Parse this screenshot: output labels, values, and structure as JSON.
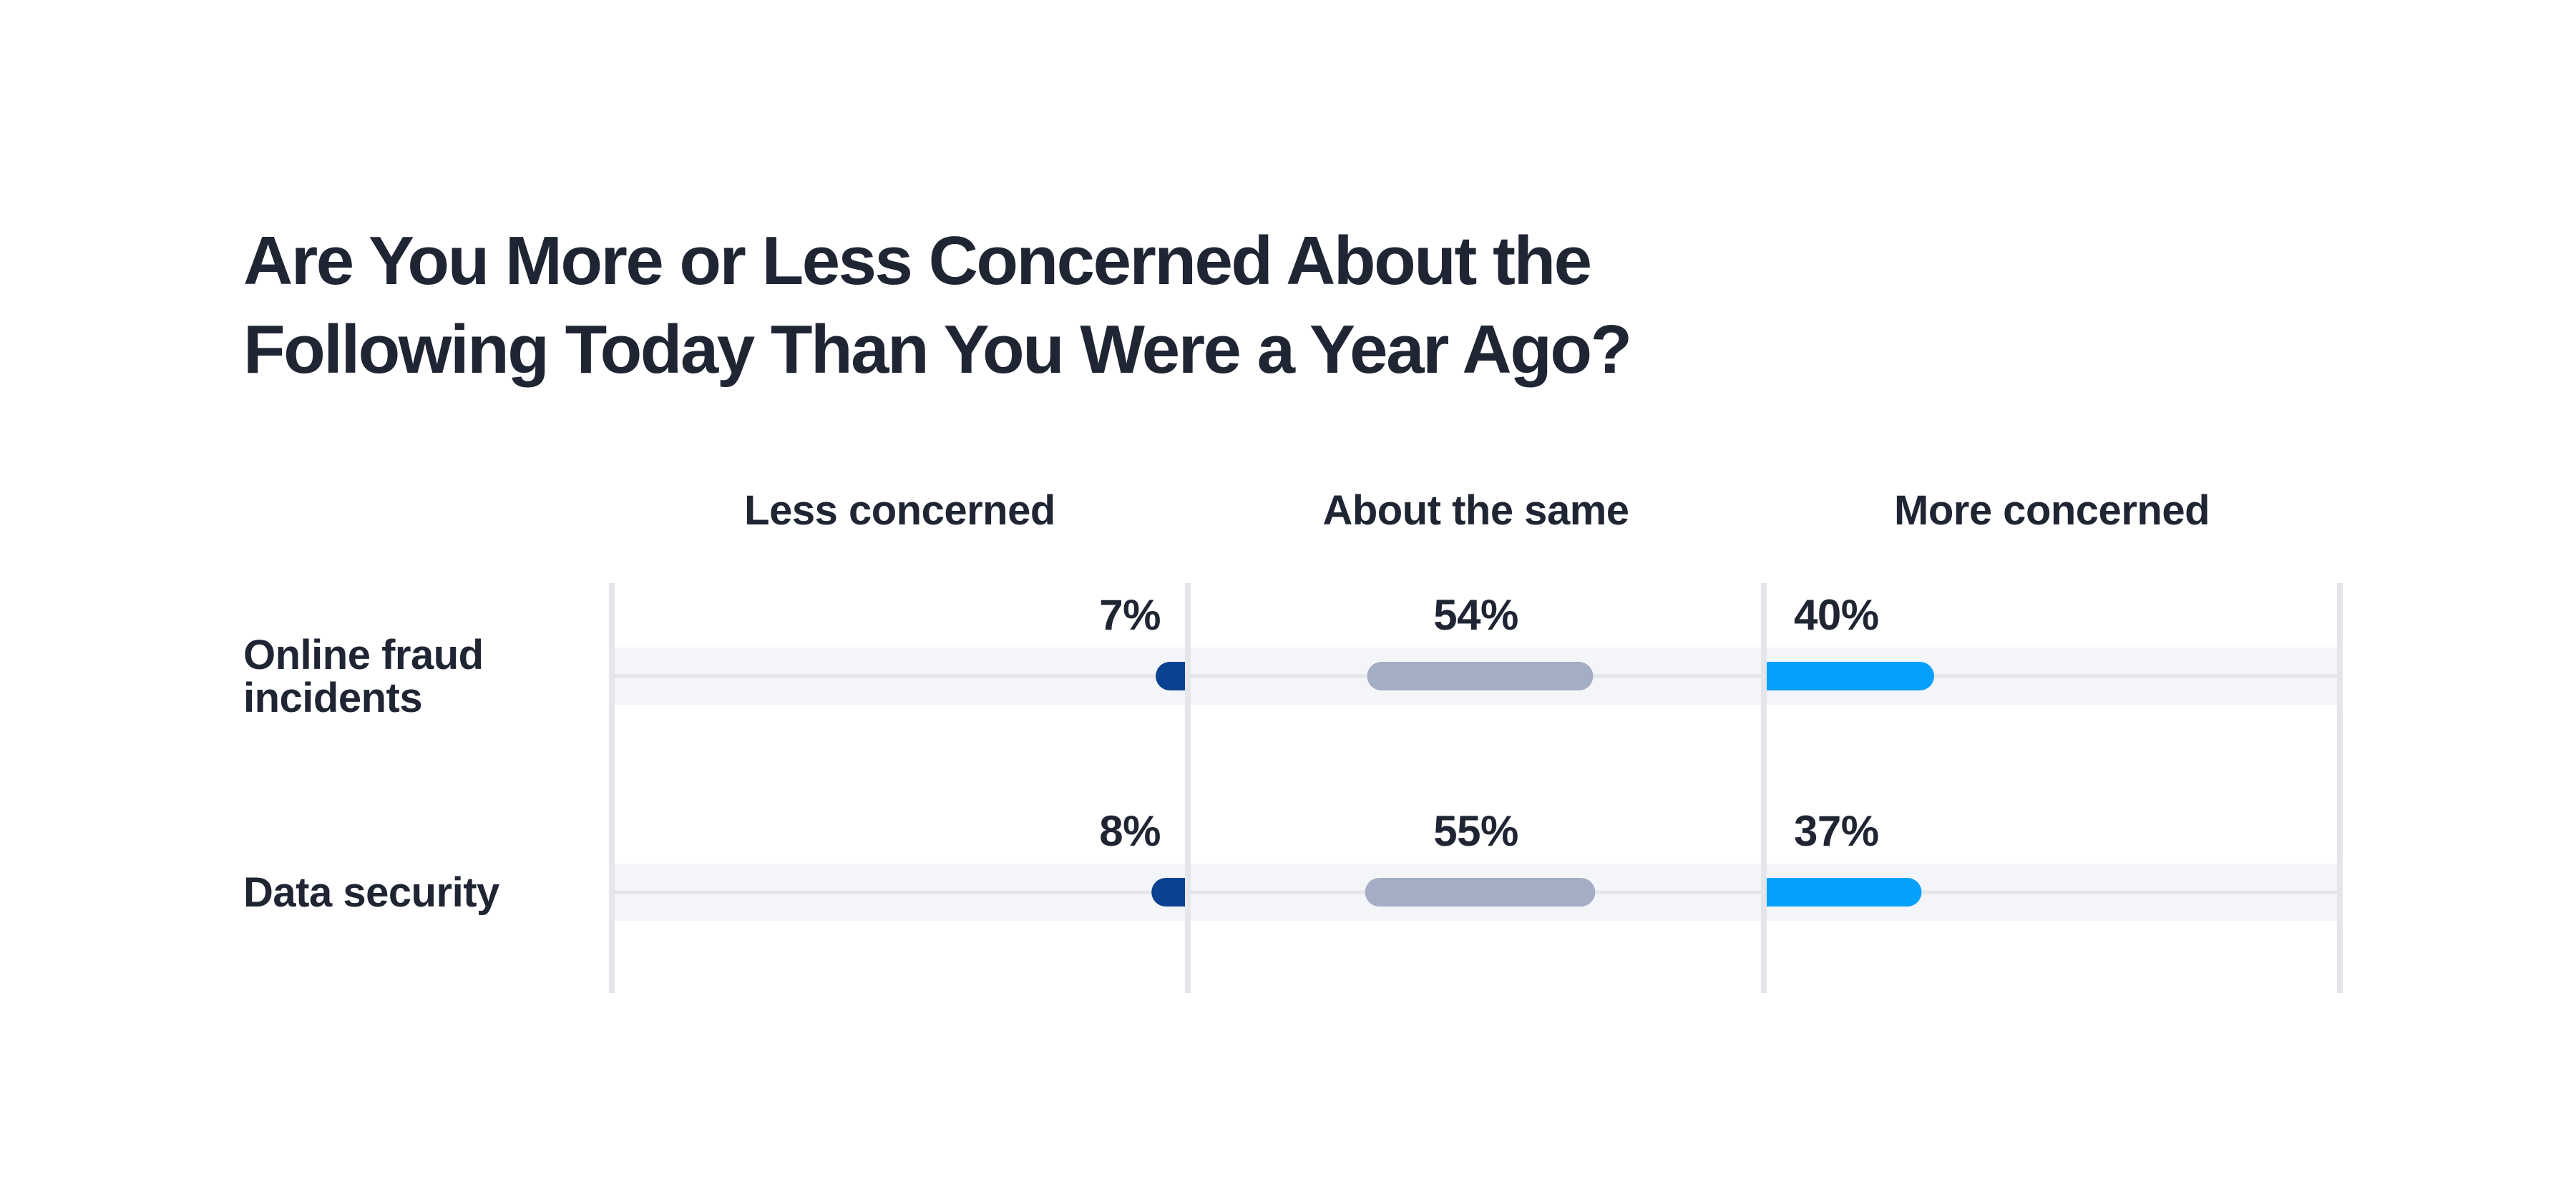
{
  "chart_data": {
    "type": "bar",
    "subtype": "diverging-segmented-dot-bar",
    "title_lines": [
      "Are You More or Less Concerned About the",
      "Following Today Than You Were a Year Ago?"
    ],
    "title": "Are You More or Less Concerned About the Following Today Than You Were a Year Ago?",
    "columns": [
      {
        "name": "Less concerned",
        "color": "#0a4190"
      },
      {
        "name": "About the same",
        "color": "#a3aec4"
      },
      {
        "name": "More concerned",
        "color": "#05a0fb"
      }
    ],
    "categories": [
      {
        "label_lines": [
          "Online fraud",
          "incidents"
        ],
        "label": "Online fraud incidents"
      },
      {
        "label_lines": [
          "Data security"
        ],
        "label": "Data security"
      }
    ],
    "series": [
      {
        "name": "Less concerned",
        "values": [
          7,
          8
        ],
        "labels": [
          "7%",
          "8%"
        ]
      },
      {
        "name": "About the same",
        "values": [
          54,
          55
        ],
        "labels": [
          "54%",
          "55%"
        ]
      },
      {
        "name": "More concerned",
        "values": [
          40,
          37
        ],
        "labels": [
          "40%",
          "37%"
        ]
      }
    ],
    "unit": "%",
    "ylim": [
      0,
      100
    ],
    "grid": true,
    "colors": {
      "text": "#1f2533",
      "row_band": "#f4f5f9",
      "divider": "#e4e6eb"
    }
  }
}
